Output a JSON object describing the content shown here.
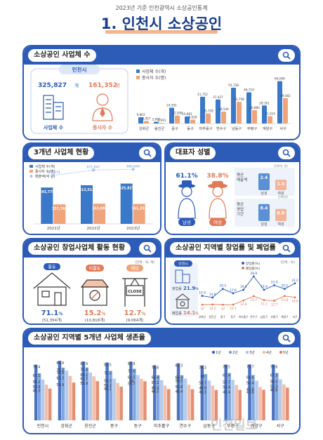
{
  "header": {
    "subtitle": "2023년 기준 인천광역시 소상공인통계",
    "title": "1. 인천시 소상공인"
  },
  "panel1": {
    "title": "소상공인 사업체 수",
    "city": "인천시",
    "businesses": "325,827",
    "businesses_unit": "개",
    "workers": "161,352",
    "workers_unit": "명",
    "business_label": "사업체 수",
    "worker_label": "종사자 수",
    "legend": [
      "사업체 수(개)",
      "종사자 수(명)"
    ]
  },
  "panel2": {
    "title": "3개년 사업체 현황",
    "legend": [
      "사업체 수(개)",
      "종사자 수(명)",
      "매출액(억 원)"
    ]
  },
  "panel3": {
    "title": "대표자 성별",
    "male_pct": "61.1%",
    "female_pct": "38.8%",
    "male": "남성",
    "female": "여성",
    "unit": "단위(억, 원)",
    "sales_label": "평균\n매출액",
    "sales_m": "2.4",
    "sales_f": "1.5",
    "period_unit": "단위(년)",
    "period_label": "평균\n영업\n기간",
    "period_m": "8.4",
    "period_f": "6.0"
  },
  "panel4": {
    "title": "소상공인 창업사업체 활동 현황",
    "unit": "(단위 : %, 개)",
    "items": [
      {
        "label": "활동",
        "pct": "71.1",
        "count": "(51,354개)"
      },
      {
        "label": "비활동",
        "pct": "15.2",
        "count": "(10,818개)"
      },
      {
        "label": "폐업",
        "pct": "12.7",
        "count": "(9,064개)"
      }
    ],
    "close_sign": "CLOSE"
  },
  "panel5": {
    "title": "소상공인 지역별 창업률 및 폐업률",
    "unit": "(단위 : %)",
    "city": "인천시",
    "startup_label": "창업률",
    "startup": "21.9",
    "closure_label": "폐업률",
    "closure": "14.1",
    "legend": [
      "창업률(%)",
      "폐업률(%)"
    ]
  },
  "panel6": {
    "title": "소상공인 지역별 5개년 사업체 생존율",
    "legend": [
      "1년",
      "2년",
      "3년",
      "4년",
      "5년"
    ]
  },
  "watermark": "인천일보",
  "chart_data": [
    {
      "type": "bar",
      "title": "",
      "regions": [
        "강화군",
        "옹진군",
        "중구",
        "동구",
        "미추홀구",
        "연수구",
        "남동구",
        "부평구",
        "계양구",
        "서구"
      ],
      "series": [
        {
          "name": "사업체 수(개)",
          "values": [
            9862,
            2690,
            24591,
            10881,
            41752,
            37427,
            55738,
            48719,
            28161,
            66006
          ]
        },
        {
          "name": "종사자 수(명)",
          "values": [
            3957,
            1091,
            12508,
            6026,
            15728,
            18544,
            33758,
            20880,
            11514,
            39482
          ]
        }
      ]
    },
    {
      "type": "bar",
      "categories": [
        "2021년",
        "2022년",
        "2023년"
      ],
      "series": [
        {
          "name": "사업체 수(개)",
          "values": [
            293775,
            312512,
            325827
          ]
        },
        {
          "name": "종사자 수(명)",
          "values": [
            157764,
            163098,
            161352
          ]
        },
        {
          "name": "매출액(억 원)",
          "values": [
            610273,
            671847,
            680640
          ]
        }
      ]
    },
    {
      "type": "line",
      "categories": [
        "강화군",
        "옹진군",
        "중구",
        "동구",
        "미추홀구",
        "연수구",
        "남동구",
        "부평구",
        "계양구",
        "서구"
      ],
      "series": [
        {
          "name": "창업률(%)",
          "values": [
            15.9,
            14.8,
            20.5,
            17.6,
            19.9,
            28.8,
            19.9,
            22.9,
            20.5,
            24.2
          ]
        },
        {
          "name": "폐업률(%)",
          "values": [
            10.0,
            10.2,
            10.0,
            10.1,
            12.8,
            15.7,
            13.1,
            12.7,
            15.8,
            14.9
          ]
        }
      ]
    },
    {
      "type": "bar",
      "categories": [
        "인천시",
        "강화군",
        "옹진군",
        "중구",
        "동구",
        "미추홀구",
        "연수구",
        "남동구",
        "부평구",
        "계양구",
        "서구"
      ],
      "series": [
        {
          "name": "1년",
          "values": [
            79.4,
            84.9,
            83.9,
            82.5,
            83.8,
            78.6,
            81.3,
            78.3,
            79.5,
            79.7,
            79.6
          ]
        },
        {
          "name": "2년",
          "values": [
            67.1,
            75.2,
            75.4,
            70.5,
            73.6,
            64.4,
            64.4,
            66.0,
            67.4,
            64.6,
            67.5
          ]
        },
        {
          "name": "3년",
          "values": [
            58.2,
            70.8,
            68.1,
            59.5,
            64.5,
            57.2,
            59.5,
            56.7,
            57.7,
            56.4,
            58.5
          ]
        },
        {
          "name": "4년",
          "values": [
            50.9,
            63.3,
            62.7,
            53.2,
            59.0,
            49.4,
            50.8,
            49.6,
            50.4,
            47.6,
            51.3
          ]
        },
        {
          "name": "5년",
          "values": [
            45.3,
            53.9,
            55.9,
            48.1,
            55.7,
            44.5,
            44.4,
            43.3,
            43.4,
            43.6,
            46.6
          ]
        }
      ]
    }
  ]
}
